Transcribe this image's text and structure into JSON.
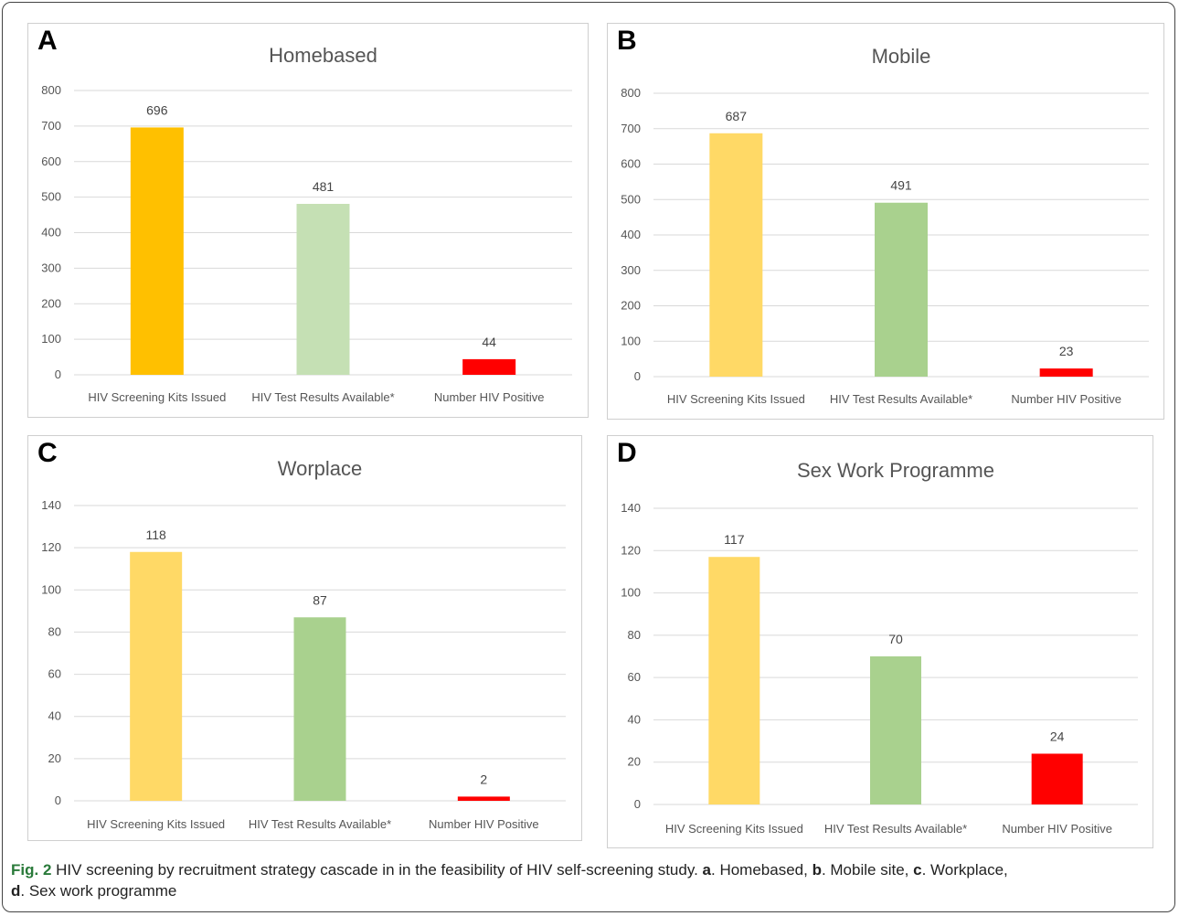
{
  "charts": [
    {
      "letter": "A",
      "title": "Homebased",
      "type": "bar",
      "categories": [
        "HIV Screening Kits Issued",
        "HIV Test Results Available*",
        "Number HIV Positive"
      ],
      "values": [
        696,
        481,
        44
      ],
      "colors": [
        "#ffc000",
        "#c5e0b4",
        "#ff0000"
      ],
      "ylim": [
        0,
        800
      ],
      "yticks": [
        0,
        100,
        200,
        300,
        400,
        500,
        600,
        700,
        800
      ],
      "grid": true,
      "legend": "none"
    },
    {
      "letter": "B",
      "title": "Mobile",
      "type": "bar",
      "categories": [
        "HIV Screening Kits Issued",
        "HIV Test Results Available*",
        "Number HIV Positive"
      ],
      "values": [
        687,
        491,
        23
      ],
      "colors": [
        "#ffd966",
        "#a9d18e",
        "#ff0000"
      ],
      "ylim": [
        0,
        800
      ],
      "yticks": [
        0,
        100,
        200,
        300,
        400,
        500,
        600,
        700,
        800
      ],
      "grid": true,
      "legend": "none"
    },
    {
      "letter": "C",
      "title": "Worplace",
      "type": "bar",
      "categories": [
        "HIV Screening Kits Issued",
        "HIV Test Results Available*",
        "Number HIV Positive"
      ],
      "values": [
        118,
        87,
        2
      ],
      "colors": [
        "#ffd966",
        "#a9d18e",
        "#ff0000"
      ],
      "ylim": [
        0,
        140
      ],
      "yticks": [
        0,
        20,
        40,
        60,
        80,
        100,
        120,
        140
      ],
      "grid": true,
      "legend": "none"
    },
    {
      "letter": "D",
      "title": "Sex Work Programme",
      "type": "bar",
      "categories": [
        "HIV Screening Kits Issued",
        "HIV Test Results Available*",
        "Number HIV Positive"
      ],
      "values": [
        117,
        70,
        24
      ],
      "colors": [
        "#ffd966",
        "#a9d18e",
        "#ff0000"
      ],
      "ylim": [
        0,
        140
      ],
      "yticks": [
        0,
        20,
        40,
        60,
        80,
        100,
        120,
        140
      ],
      "grid": true,
      "legend": "none"
    }
  ],
  "caption": {
    "fig": "Fig. 2",
    "text": " HIV screening by recruitment strategy cascade in in the feasibility of HIV self-screening study. ",
    "a": "a",
    "a_text": ". Homebased, ",
    "b": "b",
    "b_text": ". Mobile site, ",
    "c": "c",
    "c_text": ". Workplace,",
    "d": "d",
    "d_text": ". Sex work programme"
  }
}
